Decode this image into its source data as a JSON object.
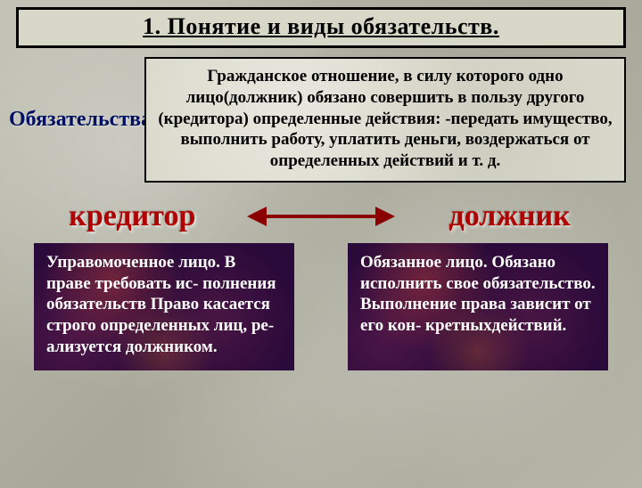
{
  "title": "1. Понятие и виды обязательств.",
  "sideLabel": "Обязательства",
  "definition": "Гражданское отношение, в силу которого одно лицо(должник) обязано совершить в пользу другого (кредитора) определенные действия: -передать имущество, выполнить работу, уплатить деньги, воздержаться от определенных действий и т. д.",
  "left": {
    "heading": "кредитор",
    "text": "Управомоченное лицо. В праве требовать ис- полнения обязательств Право касается строго определенных лиц, ре- ализуется должником."
  },
  "right": {
    "heading": "должник",
    "text": "Обязанное лицо. Обязано исполнить свое обязательство. Выполнение права зависит от его кон- кретныхдействий."
  },
  "colors": {
    "headingRed": "#b00000",
    "sideBlue": "#001060",
    "arrow": "#8b0000",
    "darkBox": "#2a0a3a"
  }
}
